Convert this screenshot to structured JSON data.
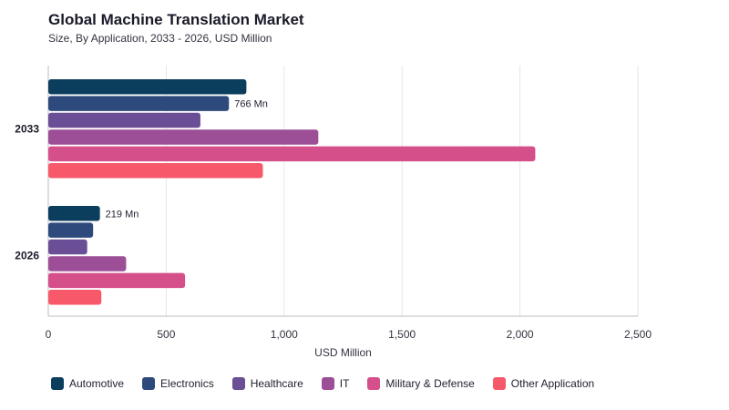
{
  "chart_data": {
    "type": "bar",
    "orientation": "horizontal",
    "title": "Global Machine Translation Market",
    "subtitle": "Size, By Application, 2033 - 2026, USD Million",
    "xlabel": "USD Million",
    "ylabel": "",
    "categories": [
      "2033",
      "2026"
    ],
    "xlim": [
      0,
      2500
    ],
    "xticks": [
      0,
      500,
      1000,
      1500,
      2000,
      2500
    ],
    "xtick_labels": [
      "0",
      "500",
      "1,000",
      "1,500",
      "2,000",
      "2,500"
    ],
    "grid": "vertical",
    "legend_position": "bottom",
    "series": [
      {
        "name": "Automotive",
        "color": "#0b3d5c",
        "values": [
          840,
          219
        ]
      },
      {
        "name": "Electronics",
        "color": "#2e4a7d",
        "values": [
          766,
          190
        ]
      },
      {
        "name": "Healthcare",
        "color": "#6a4e96",
        "values": [
          645,
          165
        ]
      },
      {
        "name": "IT",
        "color": "#9c4e96",
        "values": [
          1145,
          330
        ]
      },
      {
        "name": "Military & Defense",
        "color": "#d54f8a",
        "values": [
          2065,
          580
        ]
      },
      {
        "name": "Other Application",
        "color": "#f7596b",
        "values": [
          910,
          225
        ]
      }
    ],
    "annotations": [
      {
        "category": "2033",
        "series": "Electronics",
        "text": "766 Mn"
      },
      {
        "category": "2026",
        "series": "Automotive",
        "text": "219 Mn"
      }
    ]
  }
}
